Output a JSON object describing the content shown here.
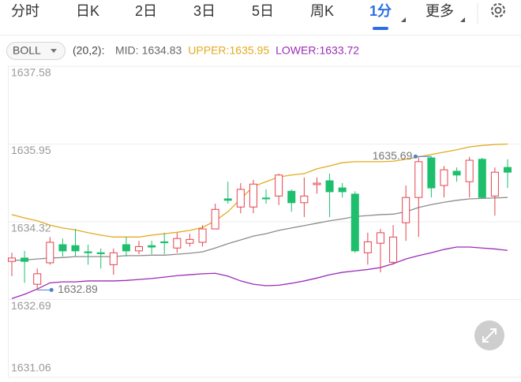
{
  "tabs": [
    "分时",
    "日K",
    "2日",
    "3日",
    "5日",
    "周K",
    "1分",
    "更多"
  ],
  "active_tab": 6,
  "indicator": {
    "name": "BOLL",
    "params": "(20,2):"
  },
  "chart_data": {
    "type": "candlestick",
    "ylim": [
      1631.06,
      1637.58
    ],
    "yticks": [
      1631.06,
      1632.69,
      1634.32,
      1635.95,
      1637.58
    ],
    "grid": true,
    "up_color": "#e5434f",
    "down_color": "#1dbf6c",
    "candles": [
      {
        "open": 1633.49,
        "high": 1633.67,
        "low": 1633.18,
        "close": 1633.56
      },
      {
        "open": 1633.56,
        "high": 1633.71,
        "low": 1633.04,
        "close": 1633.49
      },
      {
        "open": 1633.01,
        "high": 1633.34,
        "low": 1632.89,
        "close": 1633.23
      },
      {
        "open": 1633.46,
        "high": 1634.0,
        "low": 1633.42,
        "close": 1633.89
      },
      {
        "open": 1633.84,
        "high": 1633.97,
        "low": 1633.59,
        "close": 1633.71
      },
      {
        "open": 1633.82,
        "high": 1634.17,
        "low": 1633.59,
        "close": 1633.71
      },
      {
        "open": 1633.69,
        "high": 1633.84,
        "low": 1633.42,
        "close": 1633.69
      },
      {
        "open": 1633.67,
        "high": 1633.76,
        "low": 1633.34,
        "close": 1633.67
      },
      {
        "open": 1633.42,
        "high": 1633.76,
        "low": 1633.21,
        "close": 1633.67
      },
      {
        "open": 1633.84,
        "high": 1634.0,
        "low": 1633.59,
        "close": 1633.71
      },
      {
        "open": 1633.71,
        "high": 1633.92,
        "low": 1633.64,
        "close": 1633.8
      },
      {
        "open": 1633.82,
        "high": 1633.92,
        "low": 1633.64,
        "close": 1633.79
      },
      {
        "open": 1633.9,
        "high": 1634.09,
        "low": 1633.64,
        "close": 1633.9
      },
      {
        "open": 1633.77,
        "high": 1634.09,
        "low": 1633.67,
        "close": 1633.97
      },
      {
        "open": 1633.87,
        "high": 1634.07,
        "low": 1633.8,
        "close": 1633.95
      },
      {
        "open": 1633.89,
        "high": 1634.25,
        "low": 1633.8,
        "close": 1634.17
      },
      {
        "open": 1634.17,
        "high": 1634.7,
        "low": 1634.17,
        "close": 1634.58
      },
      {
        "open": 1634.8,
        "high": 1635.16,
        "low": 1634.7,
        "close": 1634.77
      },
      {
        "open": 1634.63,
        "high": 1635.13,
        "low": 1634.5,
        "close": 1635.0
      },
      {
        "open": 1634.63,
        "high": 1635.2,
        "low": 1634.5,
        "close": 1635.11
      },
      {
        "open": 1634.82,
        "high": 1635.0,
        "low": 1634.7,
        "close": 1634.82
      },
      {
        "open": 1634.86,
        "high": 1635.33,
        "low": 1634.67,
        "close": 1635.3
      },
      {
        "open": 1634.96,
        "high": 1635.0,
        "low": 1634.53,
        "close": 1634.72
      },
      {
        "open": 1634.72,
        "high": 1635.25,
        "low": 1634.42,
        "close": 1634.86
      },
      {
        "open": 1635.1,
        "high": 1635.25,
        "low": 1634.91,
        "close": 1635.13
      },
      {
        "open": 1635.18,
        "high": 1635.33,
        "low": 1634.42,
        "close": 1634.95
      },
      {
        "open": 1635.03,
        "high": 1635.13,
        "low": 1634.83,
        "close": 1634.95
      },
      {
        "open": 1634.9,
        "high": 1634.96,
        "low": 1633.67,
        "close": 1633.71
      },
      {
        "open": 1633.67,
        "high": 1634.09,
        "low": 1633.42,
        "close": 1633.9
      },
      {
        "open": 1633.87,
        "high": 1634.17,
        "low": 1633.26,
        "close": 1634.09
      },
      {
        "open": 1633.47,
        "high": 1634.25,
        "low": 1633.42,
        "close": 1634.0
      },
      {
        "open": 1634.3,
        "high": 1635.08,
        "low": 1633.92,
        "close": 1634.83
      },
      {
        "open": 1634.83,
        "high": 1635.66,
        "low": 1634.0,
        "close": 1635.58
      },
      {
        "open": 1635.66,
        "high": 1635.69,
        "low": 1634.83,
        "close": 1635.03
      },
      {
        "open": 1635.08,
        "high": 1635.49,
        "low": 1634.83,
        "close": 1635.41
      },
      {
        "open": 1635.38,
        "high": 1635.46,
        "low": 1635.16,
        "close": 1635.3
      },
      {
        "open": 1635.16,
        "high": 1635.68,
        "low": 1634.83,
        "close": 1635.61
      },
      {
        "open": 1635.63,
        "high": 1635.66,
        "low": 1634.8,
        "close": 1634.83
      },
      {
        "open": 1634.86,
        "high": 1635.46,
        "low": 1634.45,
        "close": 1635.36
      },
      {
        "open": 1635.46,
        "high": 1635.63,
        "low": 1635.03,
        "close": 1635.36
      }
    ],
    "series": [
      {
        "name": "MID",
        "color": "#8c8c8c",
        "values": [
          1633.51,
          1633.52,
          1633.54,
          1633.56,
          1633.57,
          1633.59,
          1633.59,
          1633.59,
          1633.59,
          1633.61,
          1633.61,
          1633.62,
          1633.62,
          1633.64,
          1633.66,
          1633.69,
          1633.77,
          1633.86,
          1633.94,
          1634.02,
          1634.07,
          1634.14,
          1634.19,
          1634.24,
          1634.29,
          1634.34,
          1634.38,
          1634.43,
          1634.45,
          1634.47,
          1634.48,
          1634.53,
          1634.62,
          1634.68,
          1634.73,
          1634.77,
          1634.8,
          1634.81,
          1634.82,
          1634.83
        ]
      },
      {
        "name": "UPPER",
        "color": "#e3ab1f",
        "values": [
          1634.47,
          1634.4,
          1634.34,
          1634.25,
          1634.19,
          1634.15,
          1634.09,
          1634.04,
          1634.0,
          1634.0,
          1634.0,
          1634.04,
          1634.07,
          1634.1,
          1634.14,
          1634.2,
          1634.34,
          1634.53,
          1634.8,
          1635.06,
          1635.16,
          1635.26,
          1635.3,
          1635.33,
          1635.43,
          1635.49,
          1635.56,
          1635.58,
          1635.58,
          1635.58,
          1635.59,
          1635.63,
          1635.68,
          1635.73,
          1635.78,
          1635.83,
          1635.89,
          1635.92,
          1635.94,
          1635.95
        ]
      },
      {
        "name": "LOWER",
        "color": "#9c2bb8",
        "values": [
          1632.71,
          1632.8,
          1632.91,
          1633.04,
          1633.06,
          1633.06,
          1633.08,
          1633.08,
          1633.08,
          1633.09,
          1633.11,
          1633.13,
          1633.16,
          1633.19,
          1633.21,
          1633.23,
          1633.24,
          1633.18,
          1633.08,
          1633.01,
          1632.98,
          1632.99,
          1633.03,
          1633.08,
          1633.14,
          1633.21,
          1633.26,
          1633.29,
          1633.32,
          1633.36,
          1633.44,
          1633.54,
          1633.61,
          1633.67,
          1633.74,
          1633.79,
          1633.79,
          1633.77,
          1633.75,
          1633.72
        ]
      }
    ]
  }
}
